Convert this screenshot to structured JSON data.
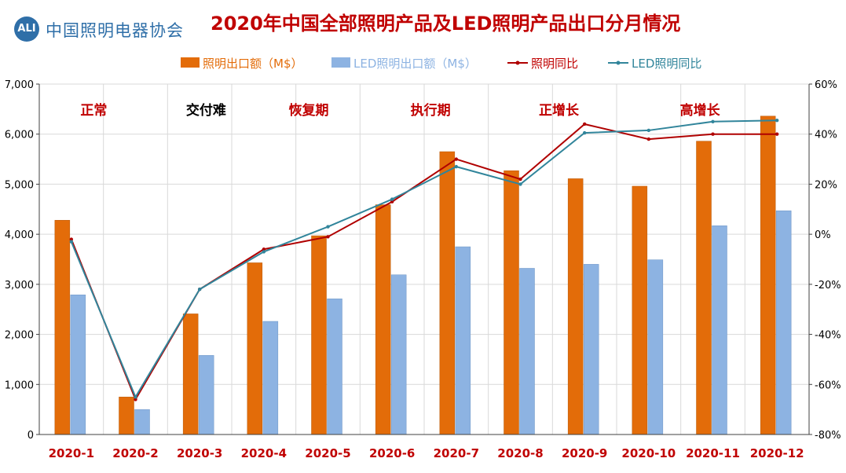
{
  "logo": {
    "badge": "ALI",
    "text": "中国照明电器协会"
  },
  "chart_data": {
    "type": "bar",
    "title": "2020年中国全部照明产品及LED照明产品出口分月情况",
    "categories": [
      "2020-1",
      "2020-2",
      "2020-3",
      "2020-4",
      "2020-5",
      "2020-6",
      "2020-7",
      "2020-8",
      "2020-9",
      "2020-10",
      "2020-11",
      "2020-12"
    ],
    "y_left": {
      "min": 0,
      "max": 7000,
      "ticks": [
        "0",
        "1,000",
        "2,000",
        "3,000",
        "4,000",
        "5,000",
        "6,000",
        "7,000"
      ]
    },
    "y_right": {
      "min": -80,
      "max": 60,
      "ticks": [
        "-80%",
        "-60%",
        "-40%",
        "-20%",
        "0%",
        "20%",
        "40%",
        "60%"
      ]
    },
    "bar_series": [
      {
        "name": "照明出口额（M$）",
        "color": "#e36c09",
        "values": [
          4280,
          750,
          2410,
          3430,
          3970,
          4590,
          5650,
          5270,
          5110,
          4960,
          5860,
          6360
        ]
      },
      {
        "name": "LED照明出口额（M$）",
        "color": "#8db3e2",
        "values": [
          2790,
          500,
          1580,
          2260,
          2710,
          3190,
          3750,
          3320,
          3400,
          3490,
          4170,
          4470
        ]
      }
    ],
    "line_series": [
      {
        "name": "照明同比",
        "color": "#b00000",
        "axis": "right",
        "values": [
          -2,
          -66,
          -22,
          -6,
          -1,
          13,
          30,
          22,
          44,
          38,
          40,
          40
        ]
      },
      {
        "name": "LED照明同比",
        "color": "#31859b",
        "axis": "right",
        "values": [
          -3,
          -65,
          -22,
          -7,
          3,
          14,
          27,
          20,
          40.5,
          41.5,
          45,
          45.5
        ]
      }
    ],
    "phases": [
      {
        "label": "正常",
        "color": "#c00000",
        "category_index": 0.35
      },
      {
        "label": "交付难",
        "color": "#000000",
        "category_index": 2.1
      },
      {
        "label": "恢复期",
        "color": "#c00000",
        "category_index": 3.7
      },
      {
        "label": "执行期",
        "color": "#c00000",
        "category_index": 5.6
      },
      {
        "label": "正增长",
        "color": "#c00000",
        "category_index": 7.6
      },
      {
        "label": "高增长",
        "color": "#c00000",
        "category_index": 9.8
      }
    ],
    "grid": true,
    "legend": "top"
  }
}
